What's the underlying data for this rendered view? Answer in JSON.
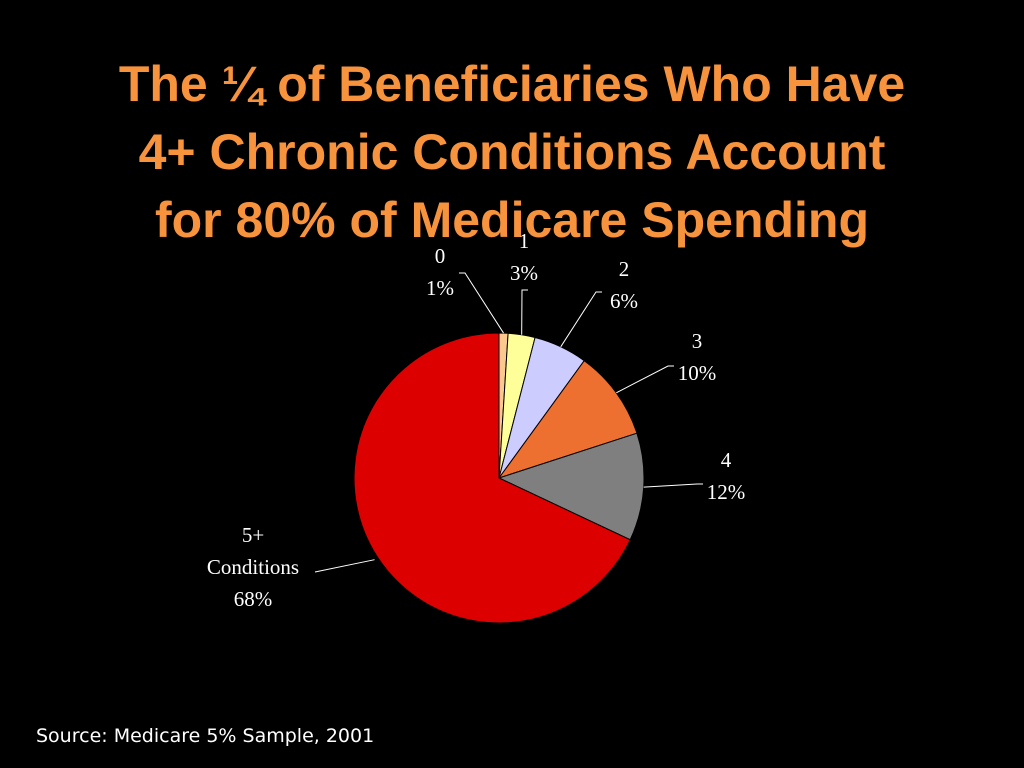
{
  "slide": {
    "title_lines": [
      "The ¼ of Beneficiaries Who Have",
      "4+ Chronic Conditions Account",
      "for 80% of Medicare Spending"
    ],
    "source": "Source: Medicare 5% Sample, 2001",
    "title_color": "#f7933d",
    "background_color": "#000000"
  },
  "chart_data": {
    "type": "pie",
    "title": "The ¼ of Beneficiaries Who Have 4+ Chronic Conditions Account for 80% of Medicare Spending",
    "legend": "none",
    "slices": [
      {
        "label": "0",
        "value": 1,
        "display_value": "1%",
        "color": "#f9c98f"
      },
      {
        "label": "1",
        "value": 3,
        "display_value": "3%",
        "color": "#ffff99"
      },
      {
        "label": "2",
        "value": 6,
        "display_value": "6%",
        "color": "#ccccff"
      },
      {
        "label": "3",
        "value": 10,
        "display_value": "10%",
        "color": "#ed7030"
      },
      {
        "label": "4",
        "value": 12,
        "display_value": "12%",
        "color": "#7f7f7f"
      },
      {
        "label": "5+ Conditions",
        "label_lines": [
          "5+",
          "Conditions"
        ],
        "value": 68,
        "display_value": "68%",
        "color": "#dd0000"
      }
    ]
  }
}
